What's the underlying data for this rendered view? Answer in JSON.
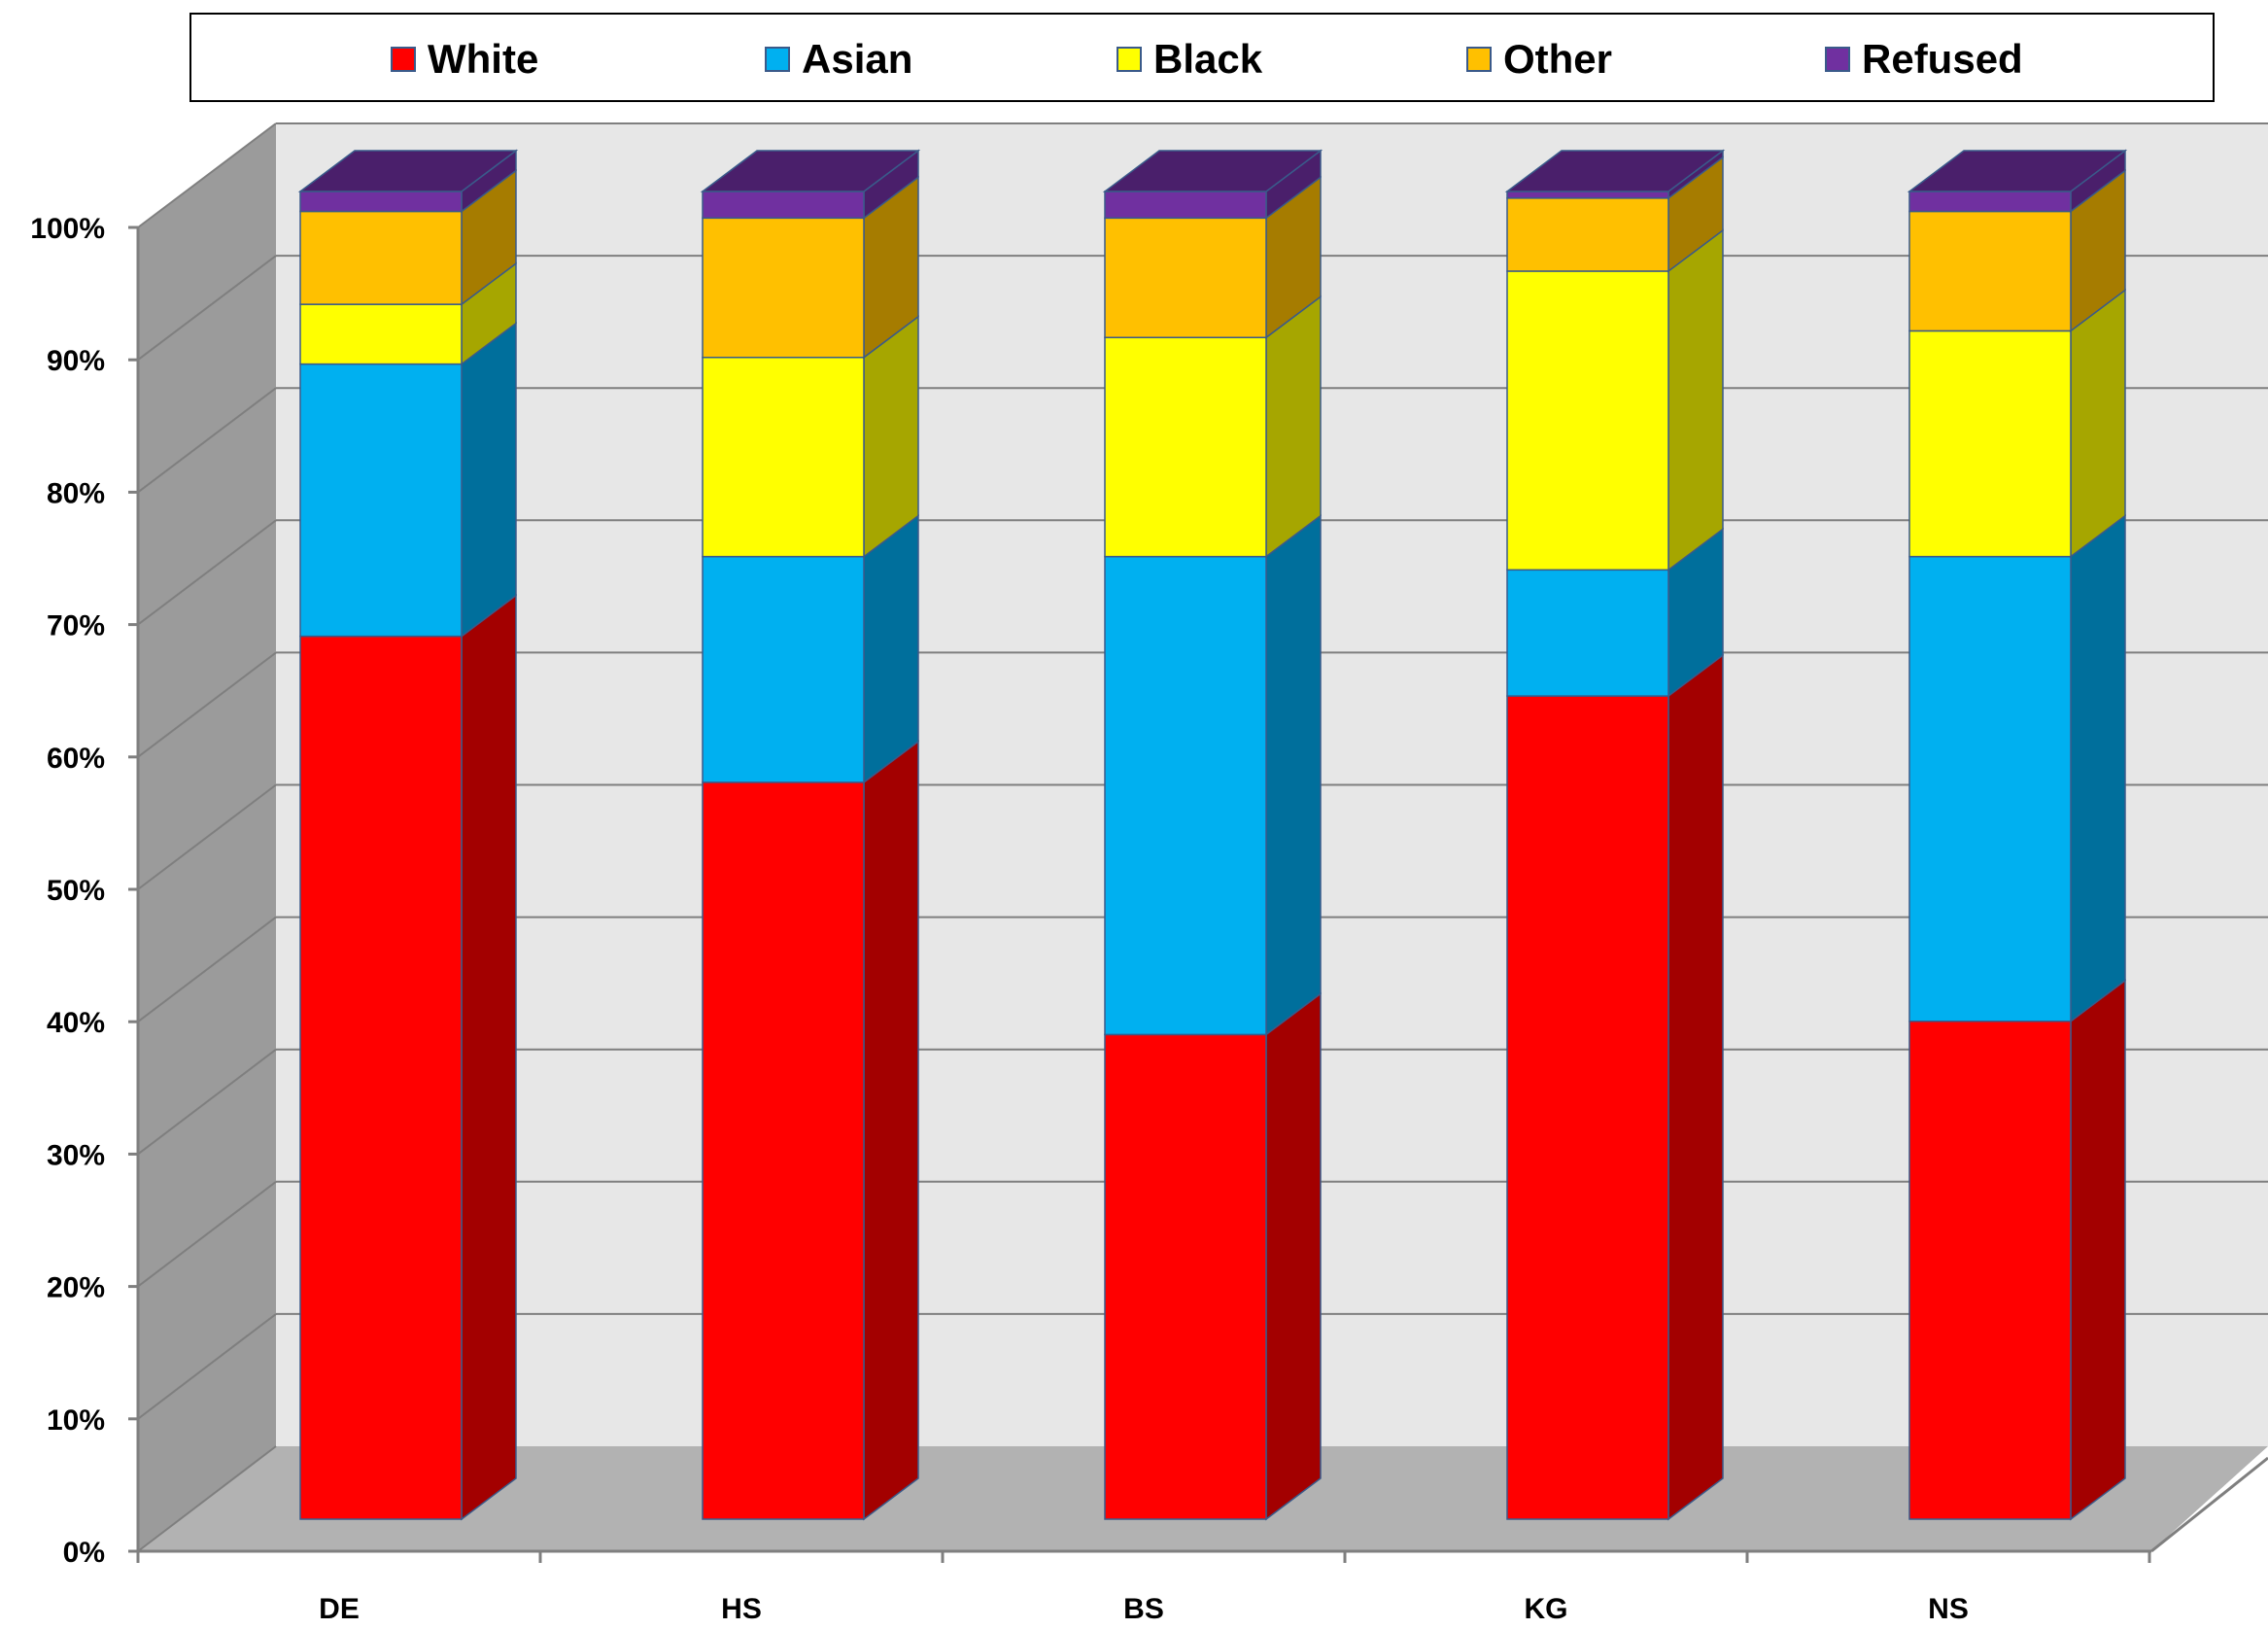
{
  "chart_data": {
    "type": "bar",
    "stacked": true,
    "three_d": true,
    "categories": [
      "DE",
      "HS",
      "BS",
      "KG",
      "NS"
    ],
    "series": [
      {
        "name": "White",
        "color": "#ff0000",
        "side_color": "#a30000",
        "values": [
          66.5,
          55.5,
          36.5,
          62,
          37.5
        ]
      },
      {
        "name": "Asian",
        "color": "#00b0f0",
        "side_color": "#006f9c",
        "values": [
          20.5,
          17,
          36,
          9.5,
          35
        ]
      },
      {
        "name": "Black",
        "color": "#ffff00",
        "side_color": "#a6a600",
        "values": [
          4.5,
          15,
          16.5,
          22.5,
          17
        ]
      },
      {
        "name": "Other",
        "color": "#ffc000",
        "side_color": "#a67c00",
        "values": [
          7,
          10.5,
          9,
          5.5,
          9
        ]
      },
      {
        "name": "Refused",
        "color": "#7030a0",
        "side_color": "#4a1f6b",
        "values": [
          1.5,
          2,
          2,
          0.5,
          1.5
        ]
      }
    ],
    "y_ticks": [
      "0%",
      "10%",
      "20%",
      "30%",
      "40%",
      "50%",
      "60%",
      "70%",
      "80%",
      "90%",
      "100%"
    ],
    "ylim": [
      0,
      100
    ],
    "title": "",
    "xlabel": "",
    "ylabel": "",
    "grid": true,
    "legend_position": "top"
  }
}
